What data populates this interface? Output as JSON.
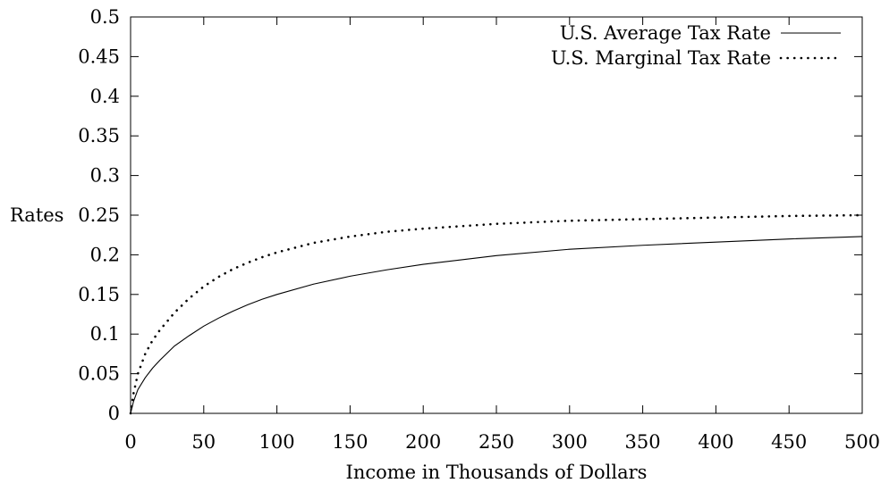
{
  "chart_data": {
    "type": "line",
    "xlabel": "Income in Thousands of Dollars",
    "ylabel": "Rates",
    "xlim": [
      0,
      500
    ],
    "ylim": [
      0,
      0.5
    ],
    "x_ticks": [
      "0",
      "50",
      "100",
      "150",
      "200",
      "250",
      "300",
      "350",
      "400",
      "450",
      "500"
    ],
    "y_ticks": [
      "0",
      "0.05",
      "0.1",
      "0.15",
      "0.2",
      "0.25",
      "0.3",
      "0.35",
      "0.4",
      "0.45",
      "0.5"
    ],
    "grid": false,
    "legend_position": "top-right",
    "series": [
      {
        "name": "U.S. Average Tax Rate",
        "style": "solid",
        "color": "#000000",
        "x": [
          0,
          2,
          5,
          10,
          15,
          20,
          30,
          40,
          50,
          60,
          70,
          80,
          90,
          100,
          125,
          150,
          175,
          200,
          250,
          300,
          350,
          400,
          450,
          500
        ],
        "y": [
          0,
          0.015,
          0.03,
          0.045,
          0.057,
          0.067,
          0.085,
          0.098,
          0.11,
          0.12,
          0.129,
          0.137,
          0.144,
          0.15,
          0.163,
          0.173,
          0.181,
          0.188,
          0.199,
          0.207,
          0.212,
          0.216,
          0.22,
          0.223
        ]
      },
      {
        "name": "U.S. Marginal Tax Rate",
        "style": "dotted",
        "color": "#000000",
        "x": [
          0,
          2,
          5,
          10,
          15,
          20,
          30,
          40,
          50,
          60,
          70,
          80,
          90,
          100,
          125,
          150,
          175,
          200,
          250,
          300,
          350,
          400,
          450,
          500
        ],
        "y": [
          0,
          0.025,
          0.05,
          0.075,
          0.092,
          0.105,
          0.127,
          0.145,
          0.16,
          0.172,
          0.182,
          0.19,
          0.197,
          0.203,
          0.215,
          0.223,
          0.229,
          0.233,
          0.239,
          0.243,
          0.245,
          0.247,
          0.249,
          0.25
        ]
      }
    ]
  }
}
